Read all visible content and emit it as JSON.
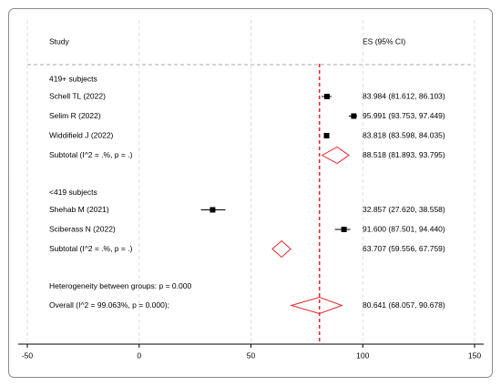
{
  "chart_data": {
    "type": "forest",
    "header_left": "Study",
    "header_right": "ES (95% CI)",
    "xlim": [
      -50,
      150
    ],
    "xticks": [
      -50,
      0,
      50,
      100,
      150
    ],
    "grid": true,
    "marker_color": "#000000",
    "diamond_color": "#e8262a",
    "groups": [
      {
        "name": "419+ subjects",
        "studies": [
          {
            "name": "Schell TL (2022)",
            "es": 83.984,
            "lo": 81.612,
            "hi": 86.103,
            "label": "83.984 (81.612, 86.103)"
          },
          {
            "name": "Selim R (2022)",
            "es": 95.991,
            "lo": 93.753,
            "hi": 97.449,
            "label": "95.991 (93.753, 97.449)"
          },
          {
            "name": "Widdifield J (2022)",
            "es": 83.818,
            "lo": 83.598,
            "hi": 84.035,
            "label": "83.818 (83.598, 84.035)"
          }
        ],
        "subtotal": {
          "name": "Subtotal  (I^2 = .%, p = .)",
          "es": 88.518,
          "lo": 81.893,
          "hi": 93.795,
          "label": "88.518 (81.893, 93.795)"
        }
      },
      {
        "name": "<419 subjects",
        "studies": [
          {
            "name": "Shehab M (2021)",
            "es": 32.857,
            "lo": 27.62,
            "hi": 38.558,
            "label": "32.857 (27.620, 38.558)"
          },
          {
            "name": "Sciberass N (2022)",
            "es": 91.6,
            "lo": 87.501,
            "hi": 94.44,
            "label": "91.600 (87.501, 94.440)"
          }
        ],
        "subtotal": {
          "name": "Subtotal  (I^2 = .%, p = .)",
          "es": 63.707,
          "lo": 59.556,
          "hi": 67.759,
          "label": "63.707 (59.556, 67.759)"
        }
      }
    ],
    "heterogeneity": "Heterogeneity between groups: p = 0.000",
    "overall": {
      "name": "Overall  (I^2 = 99.063%, p = 0.000);",
      "es": 80.641,
      "lo": 68.057,
      "hi": 90.678,
      "label": "80.641 (68.057, 90.678)"
    }
  }
}
